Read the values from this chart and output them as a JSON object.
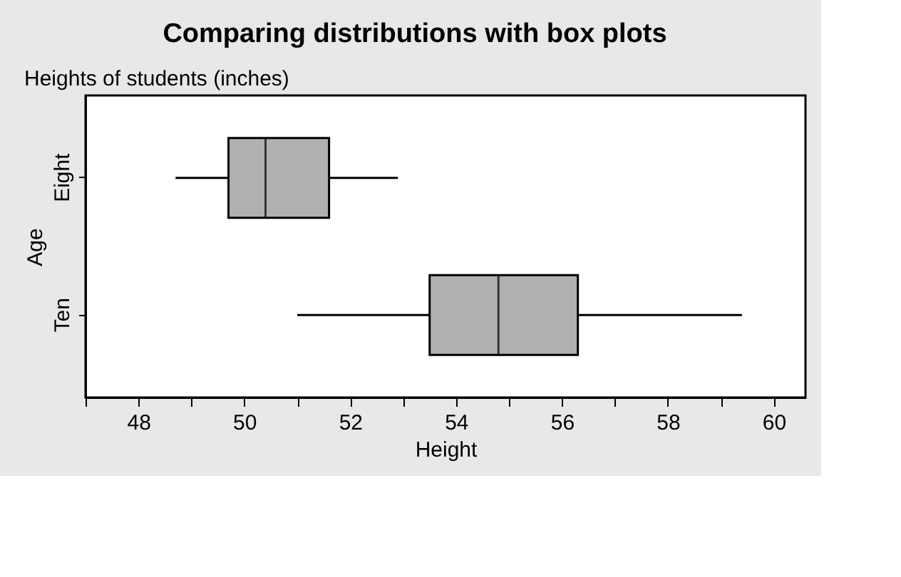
{
  "chart_data": {
    "type": "box",
    "title": "Comparing distributions with box plots",
    "subtitle": "Heights of students (inches)",
    "xlabel": "Height",
    "ylabel": "Age",
    "orientation": "horizontal",
    "categories": [
      "Eight",
      "Ten"
    ],
    "color": "#b0b0b0",
    "grid": false,
    "boxes": [
      {
        "low": 48.7,
        "q1": 49.7,
        "median": 50.4,
        "q3": 51.6,
        "high": 52.9
      },
      {
        "low": 51.0,
        "q1": 53.5,
        "median": 54.8,
        "q3": 56.3,
        "high": 59.4
      }
    ],
    "xlim": [
      47,
      60.6
    ],
    "xticks": [
      {
        "value": 47,
        "label": null
      },
      48,
      {
        "value": 49,
        "label": null
      },
      50,
      {
        "value": 51,
        "label": null
      },
      52,
      {
        "value": 53,
        "label": null
      },
      54,
      {
        "value": 55,
        "label": null
      },
      56,
      {
        "value": 57,
        "label": null
      },
      58,
      {
        "value": 59,
        "label": null
      },
      60
    ]
  }
}
